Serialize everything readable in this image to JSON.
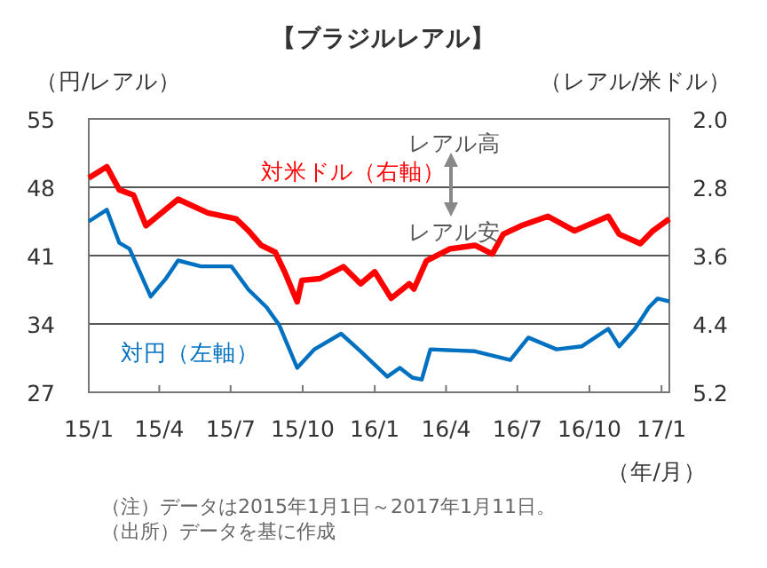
{
  "chart_data": {
    "type": "line",
    "title": "【ブラジルレアル】",
    "ylabel": "（円/レアル）",
    "y2label": "（レアル/米ドル）",
    "xlabel": "（年/月）",
    "annotations": [
      "レアル高",
      "レアル安",
      "（注）データは2015年1月1日～2017年1月11日。",
      "（出所）データを基に作成"
    ],
    "xlim": [
      "2015-01-01",
      "2017-01-11"
    ],
    "xticks": [
      {
        "value": "2015-01-01",
        "label": "15/1"
      },
      {
        "value": "2015-04-01",
        "label": "15/4"
      },
      {
        "value": "2015-07-01",
        "label": "15/7"
      },
      {
        "value": "2015-10-01",
        "label": "15/10"
      },
      {
        "value": "2016-01-01",
        "label": "16/1"
      },
      {
        "value": "2016-04-01",
        "label": "16/4"
      },
      {
        "value": "2016-07-01",
        "label": "16/7"
      },
      {
        "value": "2016-10-01",
        "label": "16/10"
      },
      {
        "value": "2017-01-01",
        "label": "17/1"
      }
    ],
    "ylim": [
      27,
      55
    ],
    "yticks": [
      27,
      34,
      41,
      48,
      55
    ],
    "y2lim": [
      5.2,
      2.0
    ],
    "y2ticks": [
      {
        "value": 2.0,
        "label": "2.0"
      },
      {
        "value": 2.8,
        "label": "2.8"
      },
      {
        "value": 3.6,
        "label": "3.6"
      },
      {
        "value": 4.4,
        "label": "4.4"
      },
      {
        "value": 5.2,
        "label": "5.2"
      }
    ],
    "grid": "y",
    "series": [
      {
        "name": "対米ドル（右軸）",
        "color": "#ff0000",
        "axis": "y2",
        "x": [
          "2015-01-01",
          "2015-01-24",
          "2015-02-09",
          "2015-02-27",
          "2015-03-15",
          "2015-04-25",
          "2015-06-02",
          "2015-07-08",
          "2015-07-24",
          "2015-08-09",
          "2015-08-27",
          "2015-09-08",
          "2015-09-24",
          "2015-09-30",
          "2015-10-23",
          "2015-11-22",
          "2015-12-14",
          "2016-01-01",
          "2016-01-22",
          "2016-02-14",
          "2016-02-20",
          "2016-03-07",
          "2016-04-06",
          "2016-05-08",
          "2016-05-30",
          "2016-06-13",
          "2016-07-06",
          "2016-08-09",
          "2016-09-12",
          "2016-10-25",
          "2016-11-08",
          "2016-12-05",
          "2016-12-21",
          "2017-01-11"
        ],
        "values": [
          2.69,
          2.56,
          2.83,
          2.89,
          3.25,
          2.94,
          3.1,
          3.17,
          3.31,
          3.48,
          3.56,
          3.79,
          4.14,
          3.89,
          3.87,
          3.73,
          3.93,
          3.79,
          4.1,
          3.93,
          3.99,
          3.66,
          3.52,
          3.48,
          3.58,
          3.35,
          3.25,
          3.14,
          3.31,
          3.14,
          3.35,
          3.46,
          3.31,
          3.17
        ]
      },
      {
        "name": "対円（左軸）",
        "color": "#0070c0",
        "axis": "y",
        "x": [
          "2015-01-01",
          "2015-01-24",
          "2015-02-09",
          "2015-02-22",
          "2015-03-21",
          "2015-04-09",
          "2015-04-25",
          "2015-05-24",
          "2015-07-02",
          "2015-07-24",
          "2015-08-16",
          "2015-09-01",
          "2015-09-24",
          "2015-10-16",
          "2015-11-19",
          "2015-12-14",
          "2016-01-17",
          "2016-02-02",
          "2016-02-18",
          "2016-03-01",
          "2016-03-12",
          "2016-05-08",
          "2016-06-22",
          "2016-07-15",
          "2016-08-20",
          "2016-09-21",
          "2016-10-25",
          "2016-11-08",
          "2016-11-28",
          "2016-12-16",
          "2016-12-27",
          "2017-01-11"
        ],
        "values": [
          44.5,
          45.7,
          42.3,
          41.7,
          36.8,
          38.6,
          40.5,
          39.9,
          39.9,
          37.5,
          35.7,
          33.9,
          29.5,
          31.4,
          33.0,
          31.2,
          28.6,
          29.5,
          28.5,
          28.3,
          31.4,
          31.2,
          30.3,
          32.6,
          31.4,
          31.7,
          33.5,
          31.7,
          33.5,
          35.7,
          36.6,
          36.3
        ]
      }
    ]
  }
}
